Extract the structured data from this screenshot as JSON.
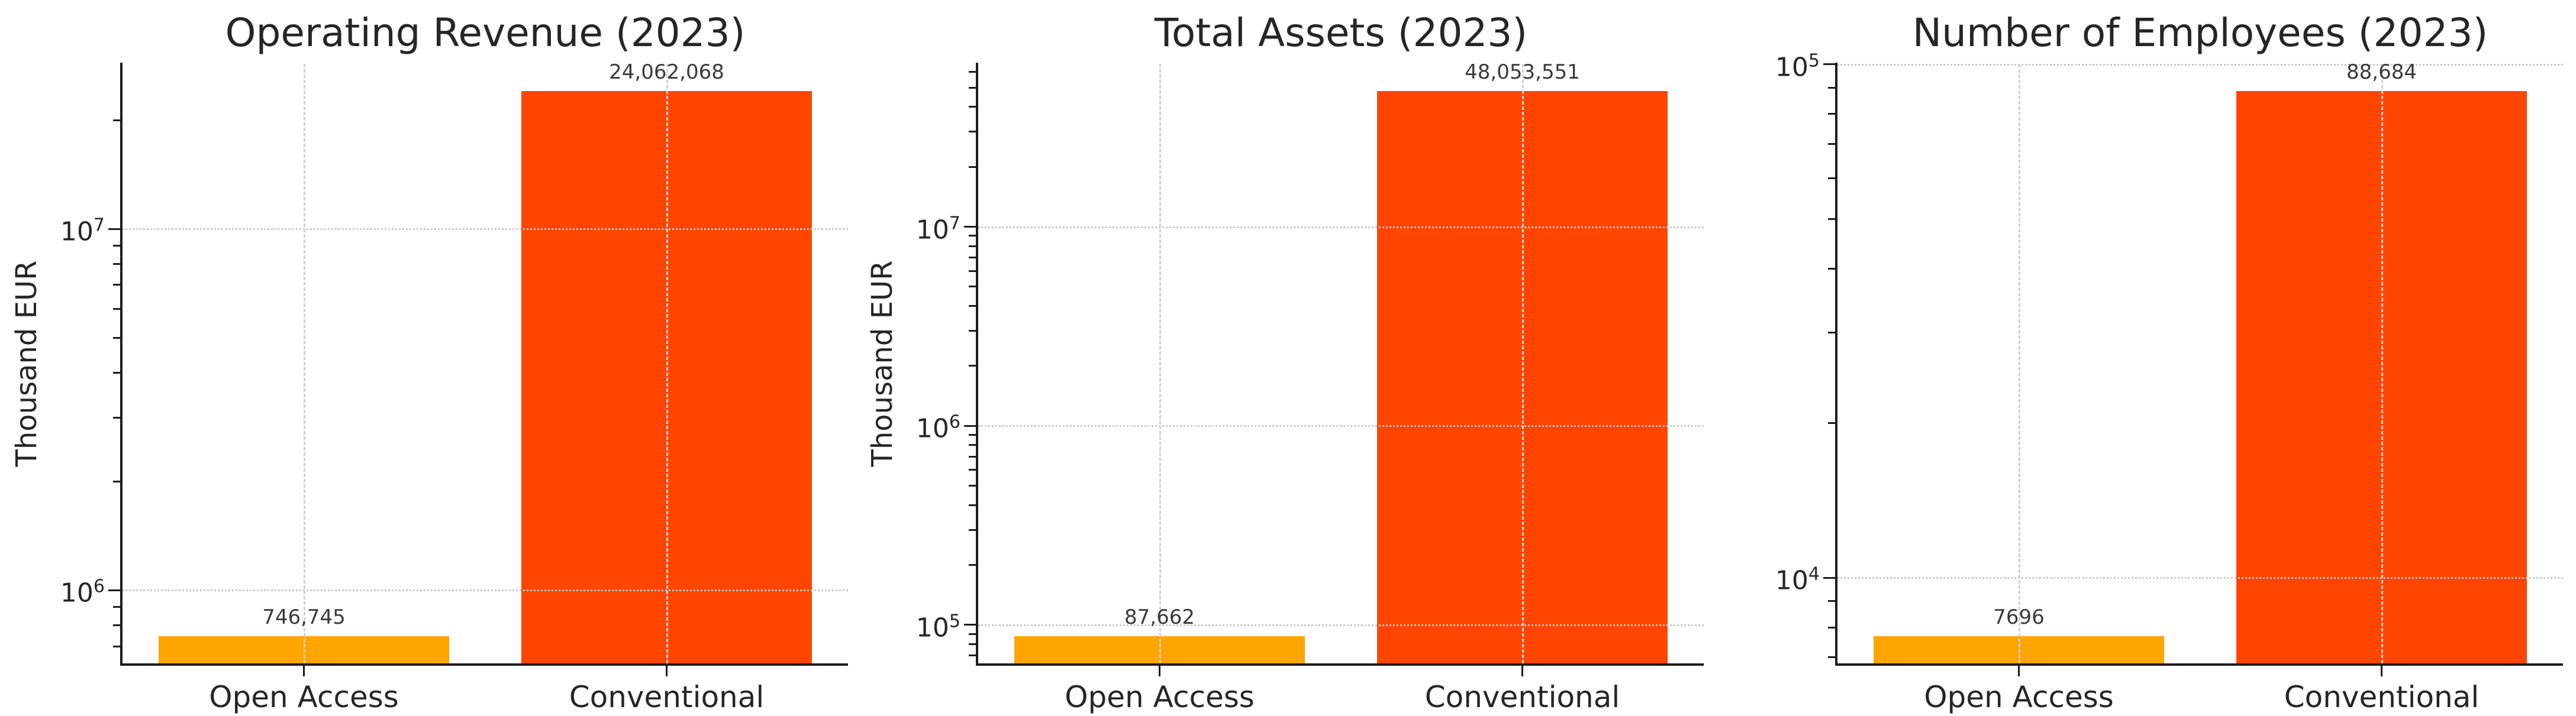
{
  "figure": {
    "background": "#ffffff",
    "text_color": "#262626",
    "spine_color": "#1c1c1c",
    "grid_color": "#cccccc",
    "value_label_color": "#3a3a3a"
  },
  "chart_data": [
    {
      "type": "bar",
      "title": "Operating Revenue (2023)",
      "ylabel": "Thousand EUR",
      "xlabel": "",
      "categories": [
        "Open Access",
        "Conventional"
      ],
      "values": [
        746745,
        24062068
      ],
      "value_labels": [
        "746,745",
        "24,062,068"
      ],
      "bar_colors": [
        "#FFA500",
        "#FF4500"
      ],
      "yscale": "log",
      "ylim": [
        627900,
        28623000
      ],
      "ytick_exponents": [
        6,
        7
      ],
      "grid": "dashed horizontal at decades, dashed vertical at category centers",
      "legend": "none"
    },
    {
      "type": "bar",
      "title": "Total Assets (2023)",
      "ylabel": "Thousand EUR",
      "xlabel": "",
      "categories": [
        "Open Access",
        "Conventional"
      ],
      "values": [
        87662,
        48053551
      ],
      "value_labels": [
        "87,662",
        "48,053,551"
      ],
      "bar_colors": [
        "#FFA500",
        "#FF4500"
      ],
      "yscale": "log",
      "ylim": [
        63960,
        65870000
      ],
      "ytick_exponents": [
        5,
        6,
        7
      ],
      "grid": "dashed horizontal at decades, dashed vertical at category centers",
      "legend": "none"
    },
    {
      "type": "bar",
      "title": "Number of Employees (2023)",
      "ylabel": "",
      "xlabel": "",
      "categories": [
        "Open Access",
        "Conventional"
      ],
      "values": [
        7696,
        88684
      ],
      "value_labels": [
        "7696",
        "88,684"
      ],
      "bar_colors": [
        "#FFA500",
        "#FF4500"
      ],
      "yscale": "log",
      "ylim": [
        6810,
        100212
      ],
      "ytick_exponents": [
        4,
        5
      ],
      "grid": "dashed horizontal at decades, dashed vertical at category centers",
      "legend": "none"
    }
  ]
}
